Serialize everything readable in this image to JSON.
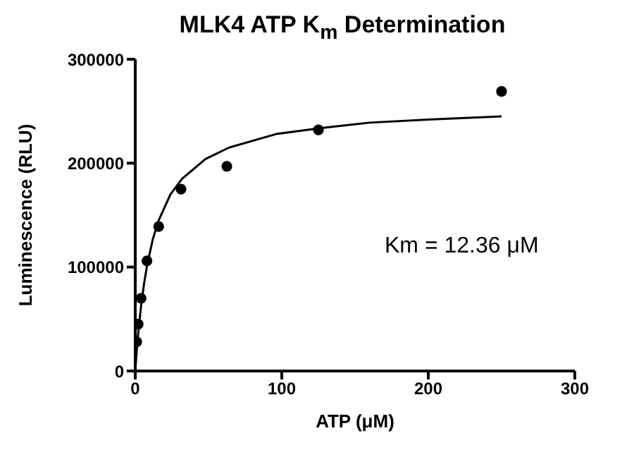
{
  "chart_data": {
    "type": "scatter",
    "title": "MLK4 ATP K$_{m}$ Determination",
    "xlabel": "ATP (μM)",
    "ylabel": "Luminescence (RLU)",
    "annotations": [
      "Km = 12.36 μM"
    ],
    "xlim": [
      0,
      300
    ],
    "xticks": [
      0,
      100,
      200,
      300
    ],
    "ylim": [
      0,
      300000
    ],
    "yticks": [
      0,
      100000,
      200000,
      300000
    ],
    "series": [
      {
        "type": "scatter",
        "color": "#000000",
        "marker": "circle",
        "x": [
          1,
          2,
          4,
          8,
          16,
          31.25,
          62.5,
          125,
          250
        ],
        "values": [
          28000,
          45000,
          70000,
          106000,
          139000,
          175000,
          197000,
          232000,
          269000
        ]
      },
      {
        "type": "line",
        "color": "#000000",
        "marker": "none",
        "line_style": "solid",
        "x": [
          0,
          1,
          2,
          4,
          6,
          8,
          12,
          16,
          24,
          32,
          48,
          64,
          96,
          128,
          160,
          200,
          250
        ],
        "values": [
          0,
          19000,
          36000,
          63000,
          84000,
          101000,
          127000,
          145000,
          170000,
          185000,
          204000,
          215000,
          228000,
          234000,
          239000,
          242000,
          245000
        ]
      }
    ]
  }
}
